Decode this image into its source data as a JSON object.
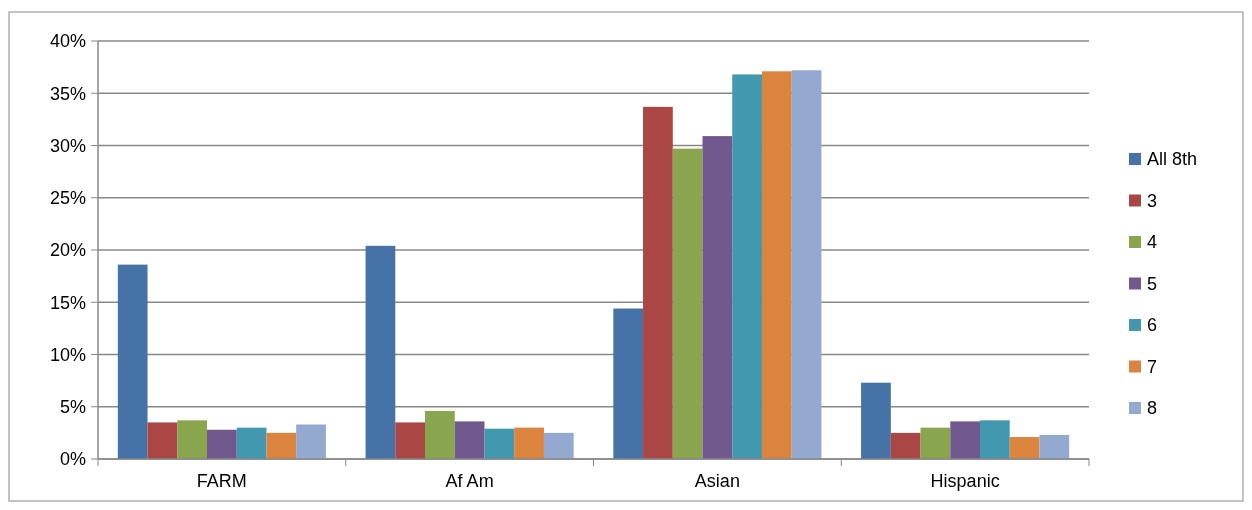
{
  "chart_data": {
    "type": "bar",
    "categories": [
      "FARM",
      "Af Am",
      "Asian",
      "Hispanic"
    ],
    "series": [
      {
        "name": "All 8th",
        "color": "#4572a7",
        "values": [
          18.6,
          20.4,
          14.4,
          7.3
        ]
      },
      {
        "name": "3",
        "color": "#aa4643",
        "values": [
          3.5,
          3.5,
          33.7,
          2.5
        ]
      },
      {
        "name": "4",
        "color": "#89a54e",
        "values": [
          3.7,
          4.6,
          29.7,
          3.0
        ]
      },
      {
        "name": "5",
        "color": "#71588f",
        "values": [
          2.8,
          3.6,
          30.9,
          3.6
        ]
      },
      {
        "name": "6",
        "color": "#4198af",
        "values": [
          3.0,
          2.9,
          36.8,
          3.7
        ]
      },
      {
        "name": "7",
        "color": "#db843d",
        "values": [
          2.5,
          3.0,
          37.1,
          2.1
        ]
      },
      {
        "name": "8",
        "color": "#93a9cf",
        "values": [
          3.3,
          2.5,
          37.2,
          2.3
        ]
      }
    ],
    "ylim": [
      0,
      40
    ],
    "yticks": [
      {
        "value": 0,
        "label": "0%"
      },
      {
        "value": 5,
        "label": "5%"
      },
      {
        "value": 10,
        "label": "10%"
      },
      {
        "value": 15,
        "label": "15%"
      },
      {
        "value": 20,
        "label": "20%"
      },
      {
        "value": 25,
        "label": "25%"
      },
      {
        "value": 30,
        "label": "30%"
      },
      {
        "value": 35,
        "label": "35%"
      },
      {
        "value": 40,
        "label": "40%"
      }
    ],
    "grid": "y",
    "legend": "right"
  }
}
